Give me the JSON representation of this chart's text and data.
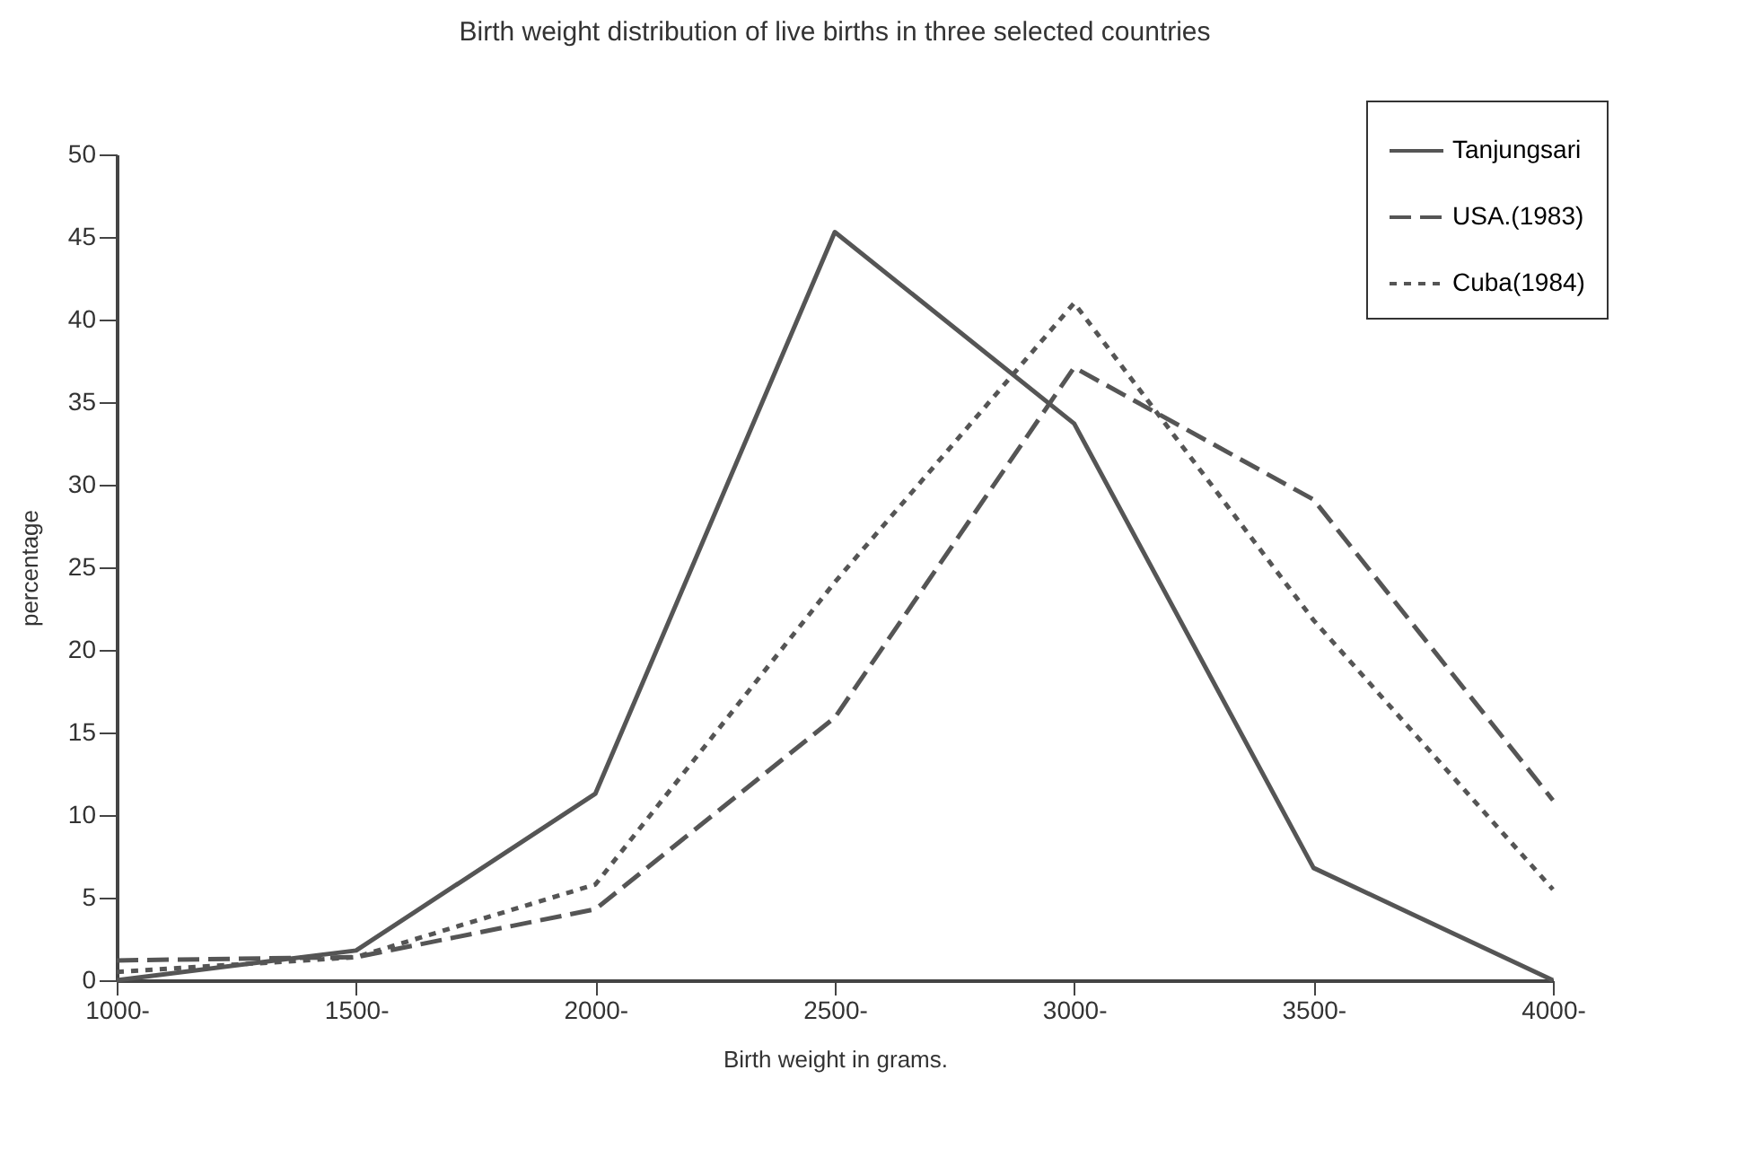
{
  "chart_data": {
    "type": "line",
    "title": "Birth weight distribution of live births in three selected countries",
    "xlabel": "Birth weight in grams.",
    "ylabel": "percentage",
    "categories": [
      "1000-",
      "1500-",
      "2000-",
      "2500-",
      "3000-",
      "3500-",
      "4000-"
    ],
    "series": [
      {
        "name": "Tanjungsari",
        "color": "#555555",
        "line_style": "solid",
        "values": [
          0,
          1.8,
          11.3,
          45.3,
          33.7,
          6.8,
          0
        ]
      },
      {
        "name": "USA.(1983)",
        "color": "#555555",
        "line_style": "dashed",
        "values": [
          1.2,
          1.4,
          4.3,
          15.9,
          37.1,
          29.1,
          10.9
        ]
      },
      {
        "name": "Cuba(1984)",
        "color": "#555555",
        "line_style": "dotted",
        "values": [
          0.5,
          1.4,
          5.8,
          24.1,
          41.0,
          21.8,
          5.5
        ]
      }
    ],
    "ylim": [
      0,
      50
    ],
    "yticks": [
      0,
      5,
      10,
      15,
      20,
      25,
      30,
      35,
      40,
      45,
      50
    ],
    "grid": false,
    "legend": "top right",
    "marker": "none"
  }
}
